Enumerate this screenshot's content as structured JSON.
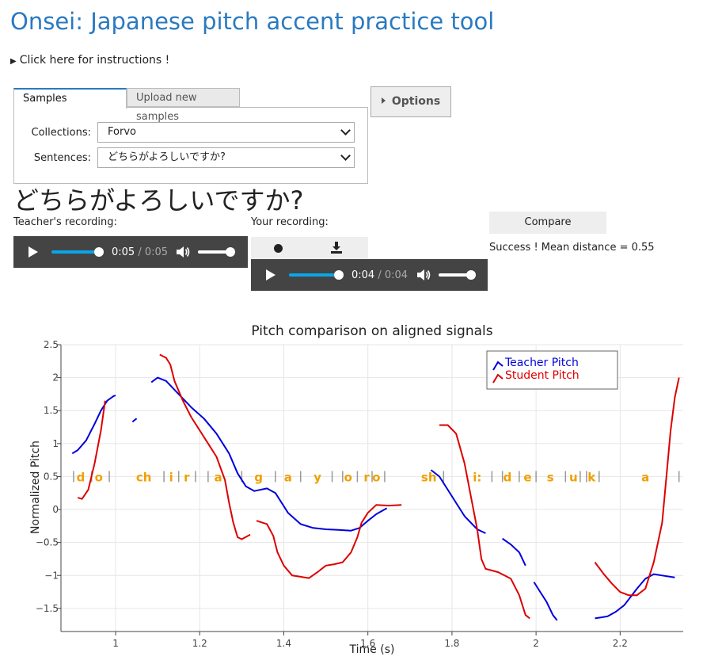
{
  "page": {
    "title": "Onsei: Japanese pitch accent practice tool",
    "instructions_label": "Click here for instructions !"
  },
  "tabs": {
    "samples": "Samples",
    "upload": "Upload new samples"
  },
  "form": {
    "collections_label": "Collections:",
    "collections_value": "Forvo",
    "sentences_label": "Sentences:",
    "sentences_value": "どちらがよろしいですか?"
  },
  "options_label": "Options",
  "sentence": "どちらがよろしいですか?",
  "teacher": {
    "label": "Teacher's recording:",
    "current": "0:05",
    "total": "0:05",
    "progress": 1.0,
    "volume": 1.0
  },
  "student": {
    "label": "Your recording:",
    "current": "0:04",
    "total": "0:04",
    "progress": 1.0,
    "volume": 1.0
  },
  "compare_label": "Compare",
  "result_text": "Success ! Mean distance = 0.55",
  "colors": {
    "teacher": "#0000dd",
    "student": "#dd0000",
    "phoneme": "#f0a000",
    "link": "#2a7ac0"
  },
  "chart_data": {
    "type": "line",
    "title": "Pitch comparison on aligned signals",
    "xlabel": "Time (s)",
    "ylabel": "Normalized Pitch",
    "xlim": [
      0.87,
      2.35
    ],
    "ylim": [
      -1.85,
      2.5
    ],
    "xticks": [
      1,
      1.2,
      1.4,
      1.6,
      1.8,
      2,
      2.2
    ],
    "yticks": [
      -1.5,
      -1,
      -0.5,
      0,
      0.5,
      1,
      1.5,
      2,
      2.5
    ],
    "xtick_labels": [
      "1",
      "1.2",
      "1.4",
      "1.6",
      "1.8",
      "2",
      "2.2"
    ],
    "ytick_labels": [
      "−1.5",
      "−1",
      "−0.5",
      "0",
      "0.5",
      "1",
      "1.5",
      "2",
      "2.5"
    ],
    "legend_position": "top-right",
    "series": [
      {
        "name": "Teacher Pitch",
        "segments": [
          [
            [
              0.897,
              0.85
            ],
            [
              0.91,
              0.9
            ],
            [
              0.93,
              1.05
            ],
            [
              0.95,
              1.3
            ],
            [
              0.965,
              1.5
            ],
            [
              0.98,
              1.65
            ],
            [
              0.995,
              1.72
            ],
            [
              1.0,
              1.73
            ]
          ],
          [
            [
              1.04,
              1.33
            ],
            [
              1.05,
              1.38
            ]
          ],
          [
            [
              1.085,
              1.93
            ],
            [
              1.1,
              2.0
            ],
            [
              1.12,
              1.95
            ],
            [
              1.15,
              1.75
            ],
            [
              1.18,
              1.55
            ],
            [
              1.21,
              1.38
            ],
            [
              1.24,
              1.15
            ],
            [
              1.27,
              0.85
            ],
            [
              1.29,
              0.55
            ],
            [
              1.31,
              0.35
            ],
            [
              1.33,
              0.28
            ],
            [
              1.36,
              0.32
            ],
            [
              1.38,
              0.25
            ],
            [
              1.41,
              -0.05
            ],
            [
              1.44,
              -0.22
            ],
            [
              1.47,
              -0.28
            ],
            [
              1.5,
              -0.3
            ],
            [
              1.53,
              -0.31
            ],
            [
              1.56,
              -0.32
            ],
            [
              1.58,
              -0.28
            ],
            [
              1.6,
              -0.17
            ],
            [
              1.62,
              -0.07
            ],
            [
              1.645,
              0.02
            ]
          ],
          [
            [
              1.75,
              0.6
            ],
            [
              1.77,
              0.5
            ],
            [
              1.8,
              0.2
            ],
            [
              1.83,
              -0.1
            ],
            [
              1.86,
              -0.3
            ],
            [
              1.88,
              -0.36
            ]
          ],
          [
            [
              1.92,
              -0.44
            ],
            [
              1.94,
              -0.53
            ],
            [
              1.96,
              -0.65
            ],
            [
              1.975,
              -0.85
            ]
          ],
          [
            [
              1.995,
              -1.1
            ],
            [
              2.01,
              -1.25
            ],
            [
              2.025,
              -1.4
            ],
            [
              2.04,
              -1.6
            ],
            [
              2.05,
              -1.68
            ]
          ],
          [
            [
              2.14,
              -1.65
            ],
            [
              2.17,
              -1.62
            ],
            [
              2.19,
              -1.55
            ],
            [
              2.21,
              -1.45
            ],
            [
              2.24,
              -1.2
            ],
            [
              2.26,
              -1.05
            ],
            [
              2.28,
              -0.98
            ],
            [
              2.3,
              -1.0
            ],
            [
              2.33,
              -1.03
            ]
          ]
        ]
      },
      {
        "name": "Student Pitch",
        "segments": [
          [
            [
              0.91,
              0.18
            ],
            [
              0.92,
              0.16
            ],
            [
              0.935,
              0.3
            ],
            [
              0.95,
              0.7
            ],
            [
              0.965,
              1.2
            ],
            [
              0.975,
              1.65
            ]
          ],
          [
            [
              1.105,
              2.35
            ],
            [
              1.12,
              2.3
            ],
            [
              1.13,
              2.2
            ],
            [
              1.14,
              1.95
            ],
            [
              1.16,
              1.65
            ],
            [
              1.18,
              1.4
            ],
            [
              1.2,
              1.2
            ],
            [
              1.22,
              1.0
            ],
            [
              1.24,
              0.8
            ],
            [
              1.26,
              0.45
            ],
            [
              1.27,
              0.1
            ],
            [
              1.28,
              -0.2
            ],
            [
              1.29,
              -0.42
            ],
            [
              1.3,
              -0.45
            ],
            [
              1.32,
              -0.38
            ]
          ],
          [
            [
              1.335,
              -0.17
            ],
            [
              1.36,
              -0.22
            ],
            [
              1.375,
              -0.4
            ],
            [
              1.385,
              -0.65
            ],
            [
              1.4,
              -0.85
            ],
            [
              1.42,
              -1.0
            ],
            [
              1.44,
              -1.02
            ],
            [
              1.46,
              -1.04
            ],
            [
              1.48,
              -0.95
            ],
            [
              1.5,
              -0.85
            ],
            [
              1.52,
              -0.83
            ],
            [
              1.54,
              -0.8
            ],
            [
              1.56,
              -0.65
            ],
            [
              1.575,
              -0.42
            ],
            [
              1.585,
              -0.2
            ],
            [
              1.6,
              -0.05
            ],
            [
              1.62,
              0.07
            ],
            [
              1.65,
              0.06
            ],
            [
              1.68,
              0.07
            ]
          ],
          [
            [
              1.77,
              1.28
            ],
            [
              1.79,
              1.28
            ],
            [
              1.81,
              1.15
            ],
            [
              1.83,
              0.7
            ],
            [
              1.845,
              0.2
            ],
            [
              1.86,
              -0.3
            ],
            [
              1.87,
              -0.75
            ],
            [
              1.88,
              -0.9
            ],
            [
              1.91,
              -0.95
            ],
            [
              1.94,
              -1.05
            ],
            [
              1.96,
              -1.3
            ],
            [
              1.975,
              -1.6
            ],
            [
              1.985,
              -1.65
            ]
          ],
          [
            [
              2.14,
              -0.8
            ],
            [
              2.16,
              -0.97
            ],
            [
              2.18,
              -1.12
            ],
            [
              2.2,
              -1.25
            ],
            [
              2.22,
              -1.3
            ],
            [
              2.24,
              -1.3
            ],
            [
              2.26,
              -1.2
            ],
            [
              2.28,
              -0.8
            ],
            [
              2.3,
              -0.2
            ],
            [
              2.31,
              0.5
            ],
            [
              2.32,
              1.2
            ],
            [
              2.33,
              1.7
            ],
            [
              2.34,
              2.0
            ]
          ]
        ]
      }
    ],
    "phonemes": [
      {
        "text": "d",
        "x": 0.917
      },
      {
        "text": "o",
        "x": 0.96
      },
      {
        "text": "ch",
        "x": 1.067
      },
      {
        "text": "i",
        "x": 1.132
      },
      {
        "text": "r",
        "x": 1.169
      },
      {
        "text": "a",
        "x": 1.244
      },
      {
        "text": "g",
        "x": 1.34
      },
      {
        "text": "a",
        "x": 1.41
      },
      {
        "text": "y",
        "x": 1.48
      },
      {
        "text": "o",
        "x": 1.553
      },
      {
        "text": "r",
        "x": 1.597
      },
      {
        "text": "o",
        "x": 1.62
      },
      {
        "text": "sh",
        "x": 1.745
      },
      {
        "text": "i:",
        "x": 1.86
      },
      {
        "text": "d",
        "x": 1.932
      },
      {
        "text": "e",
        "x": 1.98
      },
      {
        "text": "s",
        "x": 2.034
      },
      {
        "text": "u",
        "x": 2.089
      },
      {
        "text": "k",
        "x": 2.132
      },
      {
        "text": "a",
        "x": 2.26
      }
    ],
    "phoneme_y": 0.5,
    "boundaries": [
      0.9,
      0.943,
      0.985,
      1.115,
      1.15,
      1.19,
      1.22,
      1.3,
      1.38,
      1.44,
      1.515,
      1.54,
      1.575,
      1.61,
      1.64,
      1.78,
      1.895,
      1.92,
      1.96,
      2.0,
      2.07,
      2.105,
      2.12,
      2.15,
      2.34
    ]
  }
}
